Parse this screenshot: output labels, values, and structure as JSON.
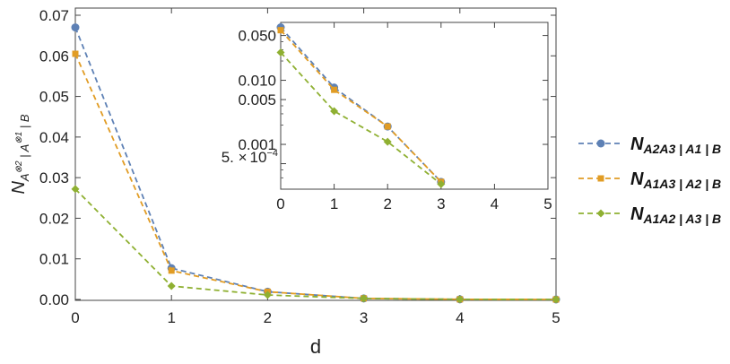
{
  "chart_data": [
    {
      "type": "line",
      "xlabel": "d",
      "ylabel_main": "N",
      "ylabel_sub1": "A",
      "ylabel_sub1_sup": "⊗2",
      "ylabel_sub2": " | A",
      "ylabel_sub2_sup": "⊗1",
      "ylabel_sub3": " | B",
      "xlim": [
        0,
        5
      ],
      "ylim": [
        0,
        0.07
      ],
      "x_ticks": [
        "0",
        "1",
        "2",
        "3",
        "4",
        "5"
      ],
      "y_ticks": [
        "0.00",
        "0.01",
        "0.02",
        "0.03",
        "0.04",
        "0.05",
        "0.06",
        "0.07"
      ],
      "y_tick_values": [
        0,
        0.01,
        0.02,
        0.03,
        0.04,
        0.05,
        0.06,
        0.07
      ],
      "grid": false,
      "legend_position": "right",
      "x": [
        0,
        1,
        2,
        3,
        4,
        5
      ],
      "series": [
        {
          "name_main": "N",
          "name_sub": "A2A3 | A1 | B",
          "color": "#5e81b5",
          "marker": "circle",
          "values": [
            0.067,
            0.0077,
            0.0019,
            0.00026,
            3e-05,
            0.0
          ]
        },
        {
          "name_main": "N",
          "name_sub": "A1A3 | A2 | B",
          "color": "#e19c24",
          "marker": "square",
          "values": [
            0.0605,
            0.0071,
            0.0019,
            0.00026,
            3e-05,
            0.0
          ]
        },
        {
          "name_main": "N",
          "name_sub": "A1A2 | A3 | B",
          "color": "#8fb032",
          "marker": "diamond",
          "values": [
            0.0272,
            0.0033,
            0.0011,
            0.00024,
            3e-05,
            0.0
          ]
        }
      ]
    },
    {
      "type": "line",
      "scale_y": "log",
      "xlim": [
        0,
        5
      ],
      "ylim": [
        0.0002,
        0.08
      ],
      "x_ticks": [
        "0",
        "1",
        "2",
        "3",
        "4",
        "5"
      ],
      "y_ticks": [
        "0.001",
        "0.005",
        "0.010",
        "0.050"
      ],
      "y_tick_values": [
        0.001,
        0.005,
        0.01,
        0.05
      ],
      "y_tick_extra": {
        "mantissa": "5. ×",
        "base": "10",
        "exponent": "−4",
        "value": 0.0005
      },
      "x": [
        0,
        1,
        2,
        3
      ],
      "series": [
        {
          "color": "#5e81b5",
          "marker": "circle",
          "values": [
            0.067,
            0.0077,
            0.0019,
            0.00026
          ]
        },
        {
          "color": "#e19c24",
          "marker": "square",
          "values": [
            0.0605,
            0.0071,
            0.0019,
            0.00026
          ]
        },
        {
          "color": "#8fb032",
          "marker": "diamond",
          "values": [
            0.0272,
            0.0033,
            0.0011,
            0.00024
          ]
        }
      ]
    }
  ]
}
